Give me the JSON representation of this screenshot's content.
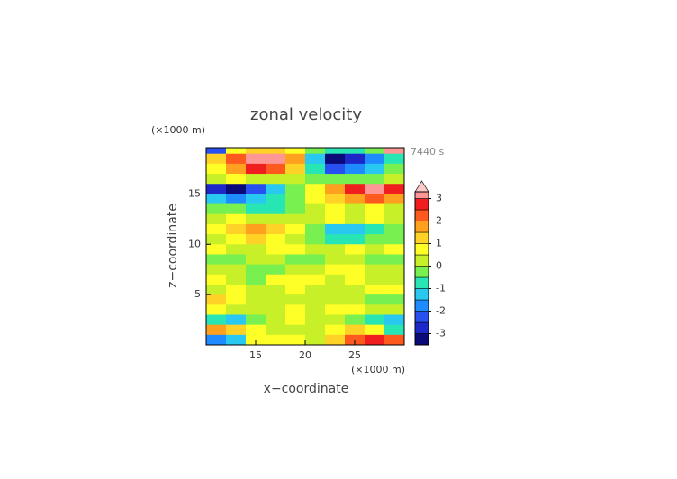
{
  "chart_data": {
    "type": "contour",
    "title": "zonal velocity",
    "x_label": "x−coordinate",
    "y_label": "z−coordinate",
    "x_unit": "(×1000 m)",
    "y_unit": "(×1000 m)",
    "time_label": "7440 s",
    "xlim": [
      10,
      30
    ],
    "ylim": [
      0,
      19.6
    ],
    "xticks": [
      15,
      20,
      25
    ],
    "yticks": [
      5,
      10,
      15
    ],
    "x": [
      11,
      13,
      15,
      17,
      19,
      21,
      23,
      25,
      27,
      29
    ],
    "z": [
      19.5,
      18.5,
      17.5,
      16.5,
      15.5,
      14.5,
      13.5,
      12.5,
      11.5,
      10.5,
      9.5,
      8.5,
      7.5,
      6.5,
      5.5,
      4.5,
      3.5,
      2.5,
      1.5,
      0.5
    ],
    "values": [
      [
        -2.5,
        0.5,
        1,
        1,
        0.5,
        -0.5,
        -1,
        -1,
        -0.5,
        3
      ],
      [
        1,
        2,
        3.2,
        3,
        1.5,
        -1.5,
        -3.2,
        -3,
        -2,
        -1
      ],
      [
        0.5,
        1.5,
        2.5,
        2,
        1,
        -1,
        -2.5,
        -2,
        -1.5,
        -0.5
      ],
      [
        0.3,
        0.5,
        0.3,
        0.2,
        0.3,
        -0.2,
        -0.3,
        -0.5,
        -0.3,
        0.2
      ],
      [
        -3,
        -3.2,
        -2.5,
        -1.5,
        -0.5,
        0.5,
        1.5,
        2.5,
        3,
        2.5
      ],
      [
        -1.5,
        -2,
        -1.5,
        -1,
        -0.5,
        0.5,
        1,
        1.5,
        2,
        1.5
      ],
      [
        -0.5,
        -0.3,
        -0.8,
        -0.8,
        -0.3,
        0.3,
        0.5,
        0.3,
        0.5,
        0.3
      ],
      [
        0.3,
        0.5,
        0.2,
        0.3,
        0.2,
        0.3,
        0.5,
        0.3,
        0.5,
        0.3
      ],
      [
        0.5,
        1,
        1.5,
        1.2,
        0.5,
        -0.5,
        -1.2,
        -1.5,
        -1,
        -0.5
      ],
      [
        0.3,
        0.5,
        1,
        0.8,
        0.3,
        -0.3,
        -0.8,
        -1,
        -0.5,
        -0.3
      ],
      [
        0.5,
        0.3,
        0.3,
        0.5,
        0.5,
        0.3,
        0.3,
        0.5,
        0.3,
        0.5
      ],
      [
        -0.3,
        -0.3,
        0.3,
        0.3,
        -0.2,
        -0.3,
        0.3,
        0.3,
        -0.3,
        -0.3
      ],
      [
        0.3,
        0.3,
        -0.5,
        -0.5,
        0.3,
        0.3,
        0.5,
        0.5,
        0.3,
        0.3
      ],
      [
        0.5,
        0.3,
        -0.3,
        0.5,
        0.6,
        0.5,
        0.3,
        0.5,
        0.3,
        0.3
      ],
      [
        0.3,
        0.6,
        0.3,
        0.3,
        0.6,
        0.3,
        0.3,
        0.3,
        0.5,
        0.6
      ],
      [
        1,
        0.6,
        0.3,
        0.3,
        0.3,
        0.3,
        0.3,
        0.3,
        -0.3,
        -0.5
      ],
      [
        0.5,
        0.3,
        0.3,
        0.3,
        0.5,
        0.3,
        0.5,
        0.5,
        0.3,
        0.3
      ],
      [
        -1,
        -1.5,
        -0.5,
        0.3,
        0.5,
        0.3,
        0.3,
        -0.5,
        -1,
        -1.5
      ],
      [
        1.5,
        1.2,
        0.6,
        0.3,
        0.3,
        0.3,
        0.6,
        1,
        0.5,
        -0.8
      ],
      [
        -2,
        -1.5,
        0.5,
        0.8,
        0.5,
        0.3,
        1,
        2,
        2.5,
        2
      ]
    ],
    "levels": [
      -3.5,
      -3,
      -2.5,
      -2,
      -1.5,
      -1,
      -0.5,
      0,
      0.5,
      1,
      1.5,
      2,
      2.5,
      3,
      3.3
    ],
    "colors": [
      "#0a0a78",
      "#1e28c8",
      "#2850f0",
      "#1e8cff",
      "#28c8f0",
      "#28e6b4",
      "#78f050",
      "#c8f028",
      "#ffff28",
      "#ffd228",
      "#ffa01e",
      "#ff5a1e",
      "#f01e1e",
      "#ff9696"
    ],
    "extend_color": "#ffc8c8",
    "colorbar_ticks": [
      -3,
      -2,
      -1,
      0,
      1,
      2,
      3
    ]
  }
}
